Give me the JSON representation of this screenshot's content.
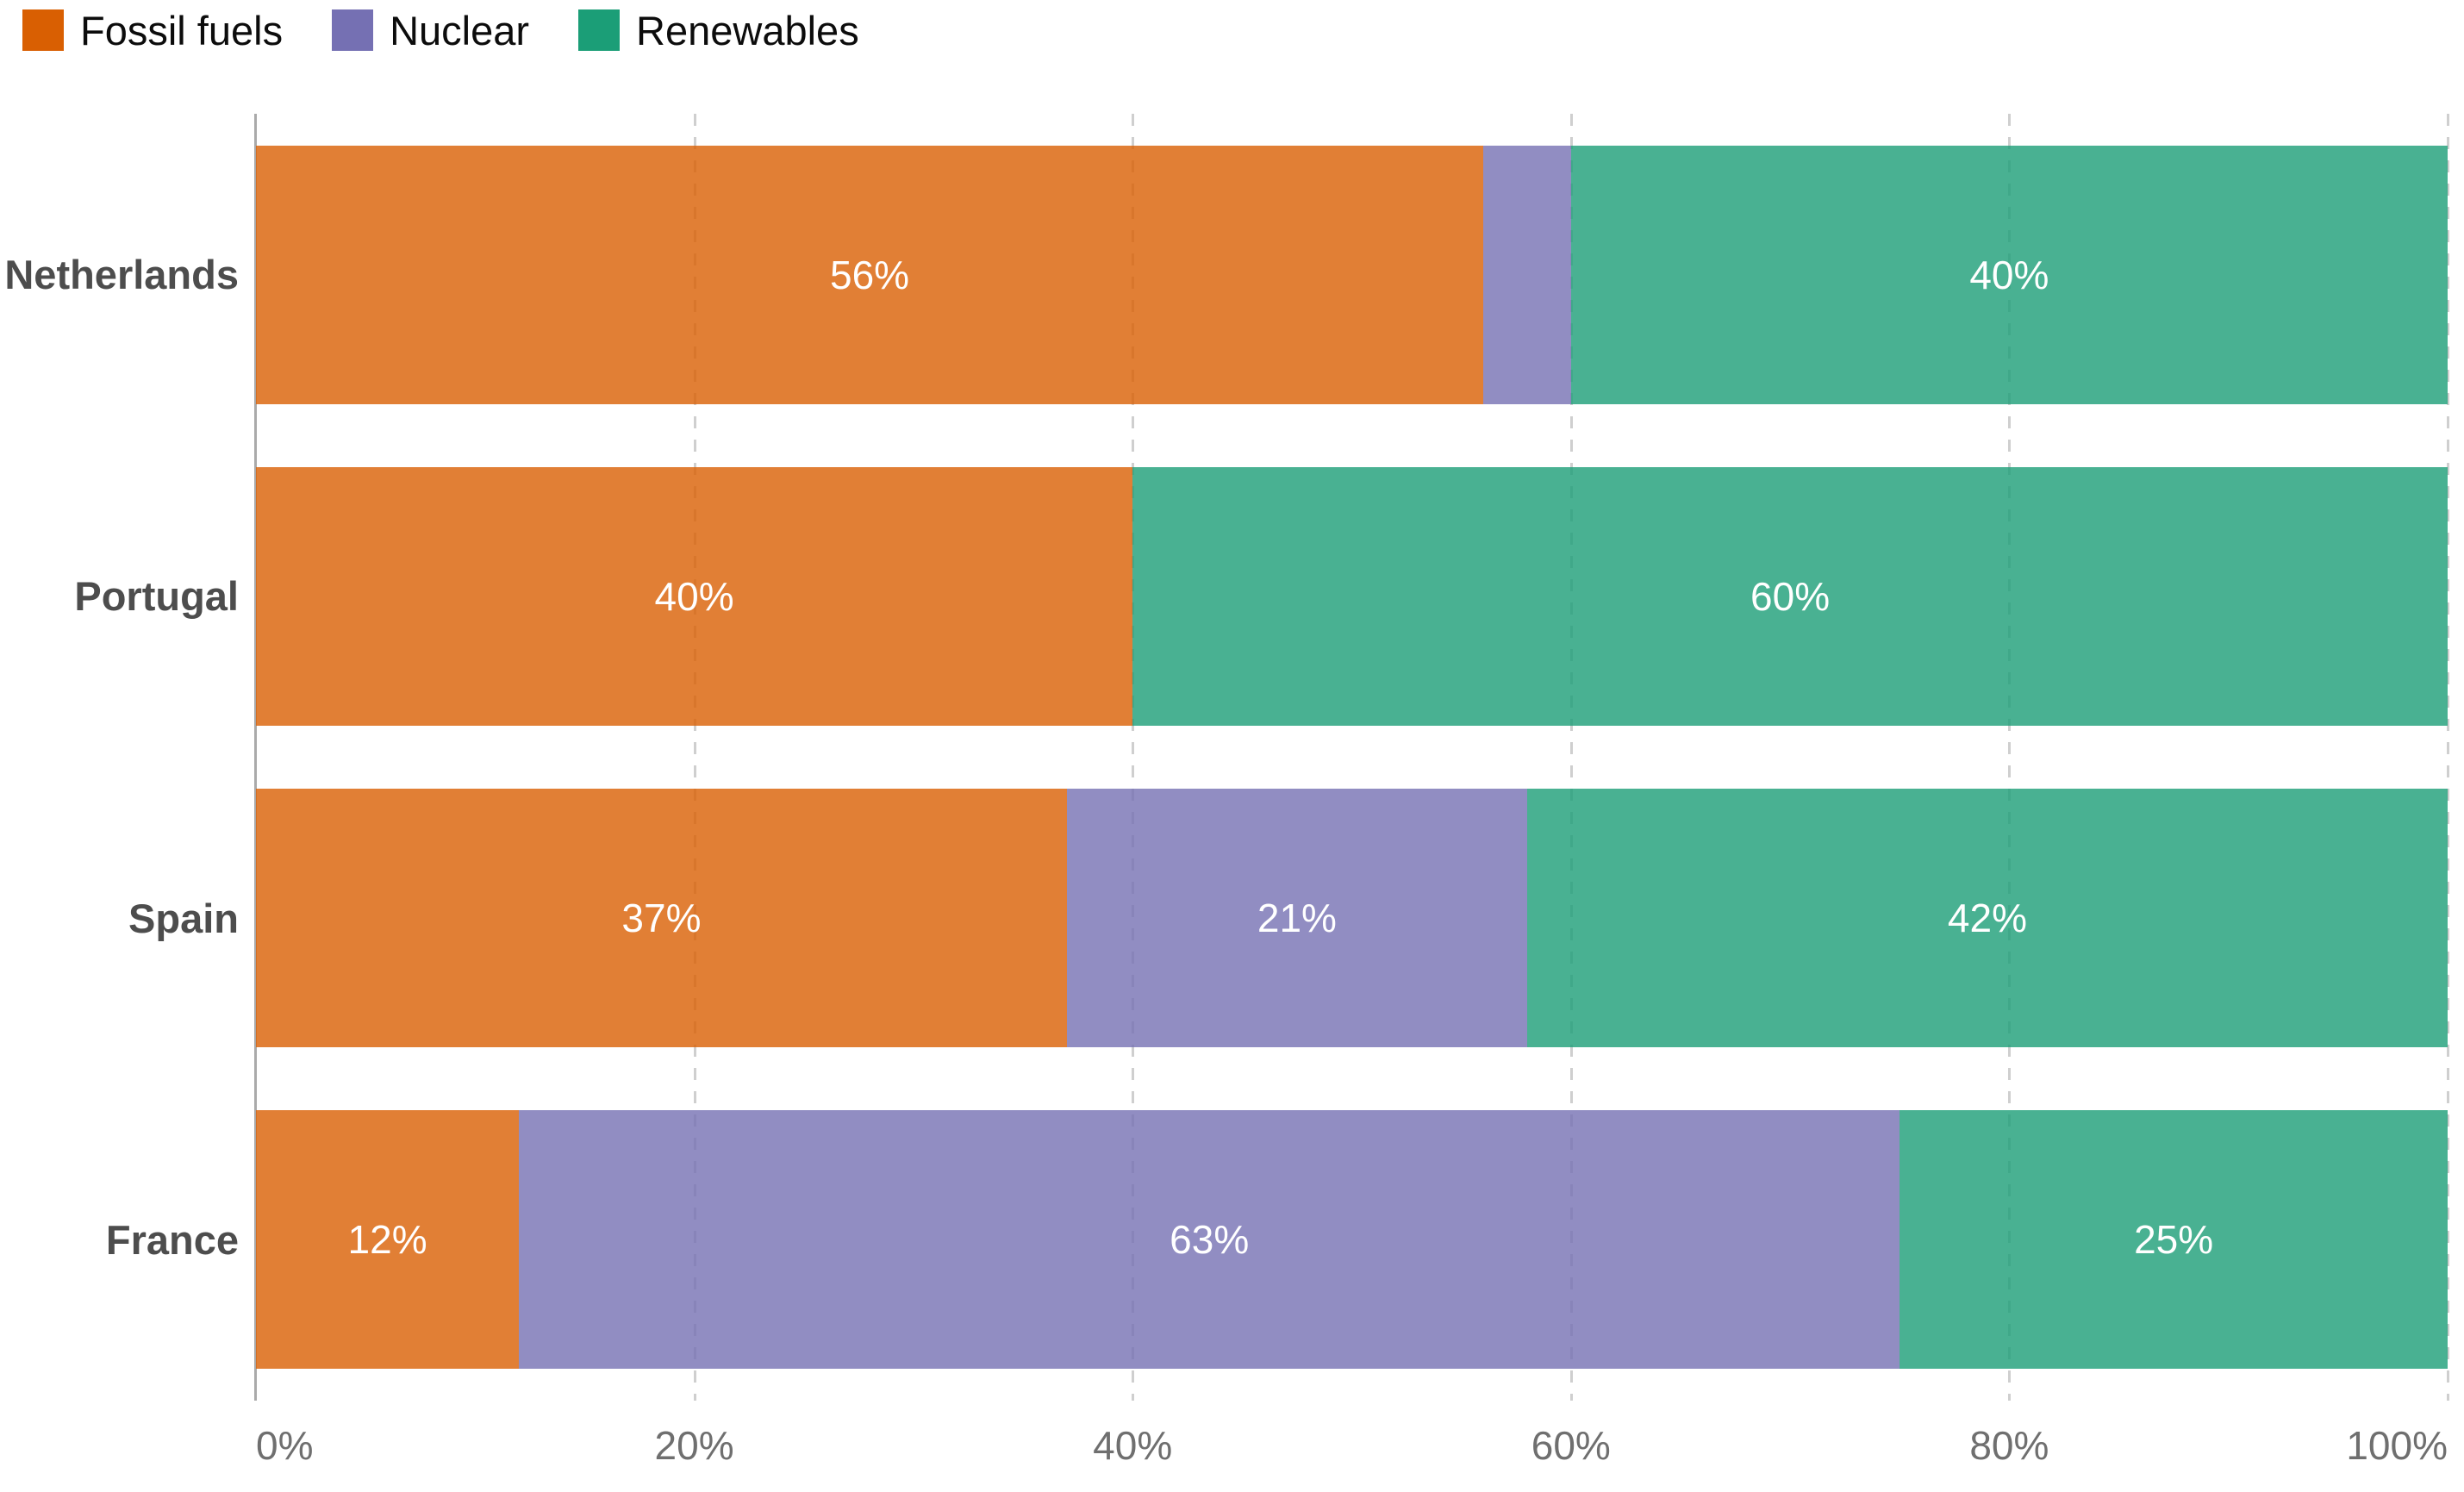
{
  "chart_data": {
    "type": "bar",
    "orientation": "horizontal",
    "stacked": true,
    "title": "",
    "categories": [
      "Netherlands",
      "Portugal",
      "Spain",
      "France"
    ],
    "series": [
      {
        "name": "Fossil fuels",
        "color": "#d95f02",
        "values": [
          56,
          40,
          37,
          12
        ],
        "value_labels": [
          "56%",
          "40%",
          "37%",
          "12%"
        ]
      },
      {
        "name": "Nuclear",
        "color": "#7570b3",
        "values": [
          4,
          0,
          21,
          63
        ],
        "value_labels": [
          "",
          "",
          "21%",
          "63%"
        ]
      },
      {
        "name": "Renewables",
        "color": "#1b9e77",
        "values": [
          40,
          60,
          42,
          25
        ],
        "value_labels": [
          "40%",
          "60%",
          "42%",
          "25%"
        ]
      }
    ],
    "bar_fill_opacity": 0.8,
    "xlim": [
      0,
      100
    ],
    "x_ticks": [
      "0%",
      "20%",
      "40%",
      "60%",
      "80%",
      "100%"
    ],
    "grid": "vertical-dashed",
    "legend_position": "top-left",
    "value_label_color": "#ffffff"
  }
}
